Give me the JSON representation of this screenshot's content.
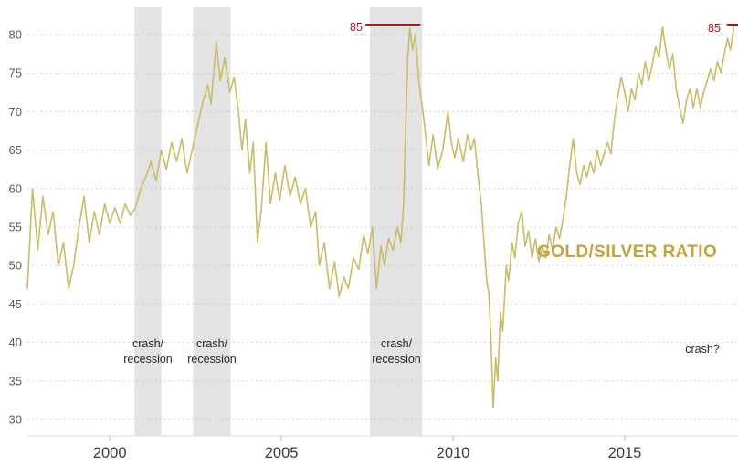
{
  "chart_data": {
    "type": "line",
    "title_annotation": "GOLD/SILVER RATIO",
    "series_name": "Gold/Silver Ratio",
    "xlabel": "",
    "ylabel": "",
    "xlim": [
      1997.6,
      2018.3
    ],
    "ylim": [
      30,
      83.5
    ],
    "yticks": [
      30,
      35,
      40,
      45,
      50,
      55,
      60,
      65,
      70,
      75,
      80
    ],
    "xticks": [
      2000,
      2005,
      2010,
      2015
    ],
    "grid": "dotted-horizontal",
    "legend": "none",
    "line_color": "#c9bc66",
    "colors": {
      "band": "#e3e3e3",
      "grid": "#c8c8c8",
      "red": "#b5121b",
      "title": "#c2a43e",
      "axis_text": "#595959",
      "xaxis_text": "#3c3c3c",
      "baseline": "#dcdcdc",
      "tick": "#b5b5b5"
    },
    "bands": [
      {
        "x0": 2000.72,
        "x1": 2001.5,
        "label": "crash/\nrecession"
      },
      {
        "x0": 2002.43,
        "x1": 2003.52,
        "label": "crash/\nrecession"
      },
      {
        "x0": 2007.58,
        "x1": 2009.1,
        "label": "crash/\nrecession"
      }
    ],
    "annotations": [
      {
        "text": "crash?",
        "x": 2017.3,
        "y": 38.5
      }
    ],
    "resistance_lines": [
      {
        "label": "85",
        "value": 85,
        "y_display": 81.3,
        "x0": 2007.45,
        "x1": 2009.05
      },
      {
        "label": "85",
        "value": 85,
        "y_display": 81.3,
        "x0": 2017.97,
        "x1": 2018.3
      }
    ],
    "points": [
      [
        1997.6,
        47
      ],
      [
        1997.75,
        60
      ],
      [
        1997.9,
        52
      ],
      [
        1998.05,
        59
      ],
      [
        1998.2,
        54
      ],
      [
        1998.35,
        57
      ],
      [
        1998.5,
        50
      ],
      [
        1998.65,
        53
      ],
      [
        1998.8,
        47
      ],
      [
        1998.95,
        50
      ],
      [
        1999.1,
        55
      ],
      [
        1999.25,
        59
      ],
      [
        1999.4,
        53
      ],
      [
        1999.55,
        57
      ],
      [
        1999.7,
        54
      ],
      [
        1999.85,
        58
      ],
      [
        2000.0,
        55.5
      ],
      [
        2000.15,
        57.5
      ],
      [
        2000.3,
        55.5
      ],
      [
        2000.45,
        58
      ],
      [
        2000.6,
        56.5
      ],
      [
        2000.75,
        57.5
      ],
      [
        2000.9,
        60
      ],
      [
        2001.05,
        61.5
      ],
      [
        2001.2,
        63.5
      ],
      [
        2001.35,
        61
      ],
      [
        2001.5,
        65
      ],
      [
        2001.65,
        62.5
      ],
      [
        2001.8,
        66
      ],
      [
        2001.95,
        63.5
      ],
      [
        2002.1,
        66.5
      ],
      [
        2002.25,
        62
      ],
      [
        2002.4,
        65
      ],
      [
        2002.55,
        68
      ],
      [
        2002.7,
        71
      ],
      [
        2002.85,
        73.5
      ],
      [
        2002.95,
        71
      ],
      [
        2003.1,
        79
      ],
      [
        2003.22,
        74
      ],
      [
        2003.35,
        77
      ],
      [
        2003.5,
        72.5
      ],
      [
        2003.62,
        74.5
      ],
      [
        2003.75,
        70
      ],
      [
        2003.85,
        65
      ],
      [
        2003.95,
        69
      ],
      [
        2004.08,
        62
      ],
      [
        2004.18,
        66
      ],
      [
        2004.3,
        53
      ],
      [
        2004.42,
        57.5
      ],
      [
        2004.55,
        66
      ],
      [
        2004.68,
        58
      ],
      [
        2004.82,
        62
      ],
      [
        2004.95,
        58.5
      ],
      [
        2005.1,
        63
      ],
      [
        2005.25,
        59
      ],
      [
        2005.4,
        61.5
      ],
      [
        2005.55,
        58
      ],
      [
        2005.7,
        60
      ],
      [
        2005.85,
        55
      ],
      [
        2006.0,
        57
      ],
      [
        2006.1,
        50
      ],
      [
        2006.25,
        53
      ],
      [
        2006.4,
        47
      ],
      [
        2006.55,
        50.5
      ],
      [
        2006.68,
        46
      ],
      [
        2006.82,
        48.5
      ],
      [
        2006.95,
        47
      ],
      [
        2007.1,
        51
      ],
      [
        2007.25,
        49.5
      ],
      [
        2007.4,
        54
      ],
      [
        2007.52,
        51.5
      ],
      [
        2007.65,
        55
      ],
      [
        2007.77,
        47
      ],
      [
        2007.9,
        52.5
      ],
      [
        2008.0,
        50
      ],
      [
        2008.12,
        53.5
      ],
      [
        2008.25,
        52
      ],
      [
        2008.38,
        55
      ],
      [
        2008.48,
        53
      ],
      [
        2008.56,
        58
      ],
      [
        2008.62,
        68
      ],
      [
        2008.68,
        77
      ],
      [
        2008.74,
        80.8
      ],
      [
        2008.82,
        78
      ],
      [
        2008.9,
        80
      ],
      [
        2009.0,
        74
      ],
      [
        2009.12,
        70
      ],
      [
        2009.3,
        63
      ],
      [
        2009.42,
        67
      ],
      [
        2009.55,
        62.5
      ],
      [
        2009.7,
        65
      ],
      [
        2009.85,
        70
      ],
      [
        2009.95,
        66
      ],
      [
        2010.05,
        64
      ],
      [
        2010.15,
        66.5
      ],
      [
        2010.3,
        63.5
      ],
      [
        2010.42,
        67
      ],
      [
        2010.52,
        65
      ],
      [
        2010.62,
        66.5
      ],
      [
        2010.72,
        62
      ],
      [
        2010.82,
        58
      ],
      [
        2010.9,
        53
      ],
      [
        2010.98,
        48
      ],
      [
        2011.04,
        46.5
      ],
      [
        2011.1,
        41
      ],
      [
        2011.17,
        31.5
      ],
      [
        2011.24,
        38
      ],
      [
        2011.3,
        35
      ],
      [
        2011.38,
        44
      ],
      [
        2011.45,
        41.5
      ],
      [
        2011.55,
        50
      ],
      [
        2011.62,
        48
      ],
      [
        2011.72,
        53
      ],
      [
        2011.8,
        51
      ],
      [
        2011.9,
        55.5
      ],
      [
        2012.0,
        57
      ],
      [
        2012.1,
        52.5
      ],
      [
        2012.2,
        54.5
      ],
      [
        2012.3,
        51
      ],
      [
        2012.4,
        53.5
      ],
      [
        2012.5,
        50.5
      ],
      [
        2012.6,
        52.5
      ],
      [
        2012.7,
        51
      ],
      [
        2012.8,
        54
      ],
      [
        2012.9,
        52
      ],
      [
        2013.0,
        55
      ],
      [
        2013.1,
        53.5
      ],
      [
        2013.2,
        56
      ],
      [
        2013.3,
        59
      ],
      [
        2013.4,
        63
      ],
      [
        2013.5,
        66.5
      ],
      [
        2013.6,
        62
      ],
      [
        2013.7,
        60.5
      ],
      [
        2013.8,
        63
      ],
      [
        2013.9,
        61.5
      ],
      [
        2014.0,
        63.5
      ],
      [
        2014.1,
        62
      ],
      [
        2014.2,
        65
      ],
      [
        2014.3,
        63
      ],
      [
        2014.4,
        64.5
      ],
      [
        2014.5,
        66
      ],
      [
        2014.6,
        64.5
      ],
      [
        2014.7,
        69
      ],
      [
        2014.8,
        72
      ],
      [
        2014.9,
        74.5
      ],
      [
        2015.0,
        72.5
      ],
      [
        2015.1,
        70
      ],
      [
        2015.2,
        73
      ],
      [
        2015.3,
        71.5
      ],
      [
        2015.4,
        75
      ],
      [
        2015.5,
        73.5
      ],
      [
        2015.6,
        76.5
      ],
      [
        2015.7,
        74
      ],
      [
        2015.8,
        76
      ],
      [
        2015.9,
        78.5
      ],
      [
        2016.0,
        77
      ],
      [
        2016.1,
        81
      ],
      [
        2016.2,
        78
      ],
      [
        2016.3,
        75.5
      ],
      [
        2016.4,
        77.5
      ],
      [
        2016.5,
        73
      ],
      [
        2016.6,
        70.5
      ],
      [
        2016.7,
        68.5
      ],
      [
        2016.8,
        71.5
      ],
      [
        2016.9,
        73
      ],
      [
        2017.0,
        70.5
      ],
      [
        2017.1,
        73
      ],
      [
        2017.2,
        70.5
      ],
      [
        2017.3,
        72.5
      ],
      [
        2017.4,
        74
      ],
      [
        2017.5,
        75.5
      ],
      [
        2017.6,
        74
      ],
      [
        2017.7,
        76.5
      ],
      [
        2017.8,
        75
      ],
      [
        2017.9,
        77.5
      ],
      [
        2018.0,
        79.5
      ],
      [
        2018.08,
        78
      ],
      [
        2018.18,
        81
      ]
    ]
  }
}
